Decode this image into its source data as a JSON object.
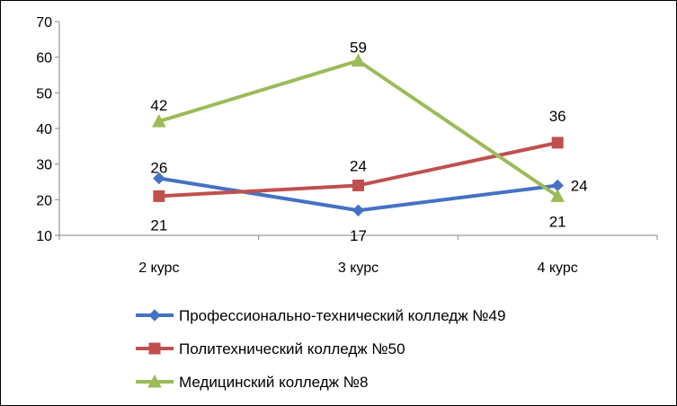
{
  "chart_data": {
    "type": "line",
    "title": "",
    "xlabel": "",
    "ylabel": "",
    "categories": [
      "2 курс",
      "3 курс",
      "4 курс"
    ],
    "ylim": [
      10,
      70
    ],
    "yticks": [
      "10",
      "20",
      "30",
      "40",
      "50",
      "60",
      "70"
    ],
    "grid": false,
    "legend_position": "bottom",
    "series": [
      {
        "name": "Профессионально-технический колледж №49",
        "values": [
          26,
          17,
          24
        ],
        "color": "#4472C4",
        "marker": "diamond"
      },
      {
        "name": "Политехнический колледж №50",
        "values": [
          21,
          24,
          36
        ],
        "color": "#C0504D",
        "marker": "square"
      },
      {
        "name": "Медицинский колледж №8",
        "values": [
          42,
          59,
          21
        ],
        "color": "#9BBB59",
        "marker": "triangle"
      }
    ]
  }
}
